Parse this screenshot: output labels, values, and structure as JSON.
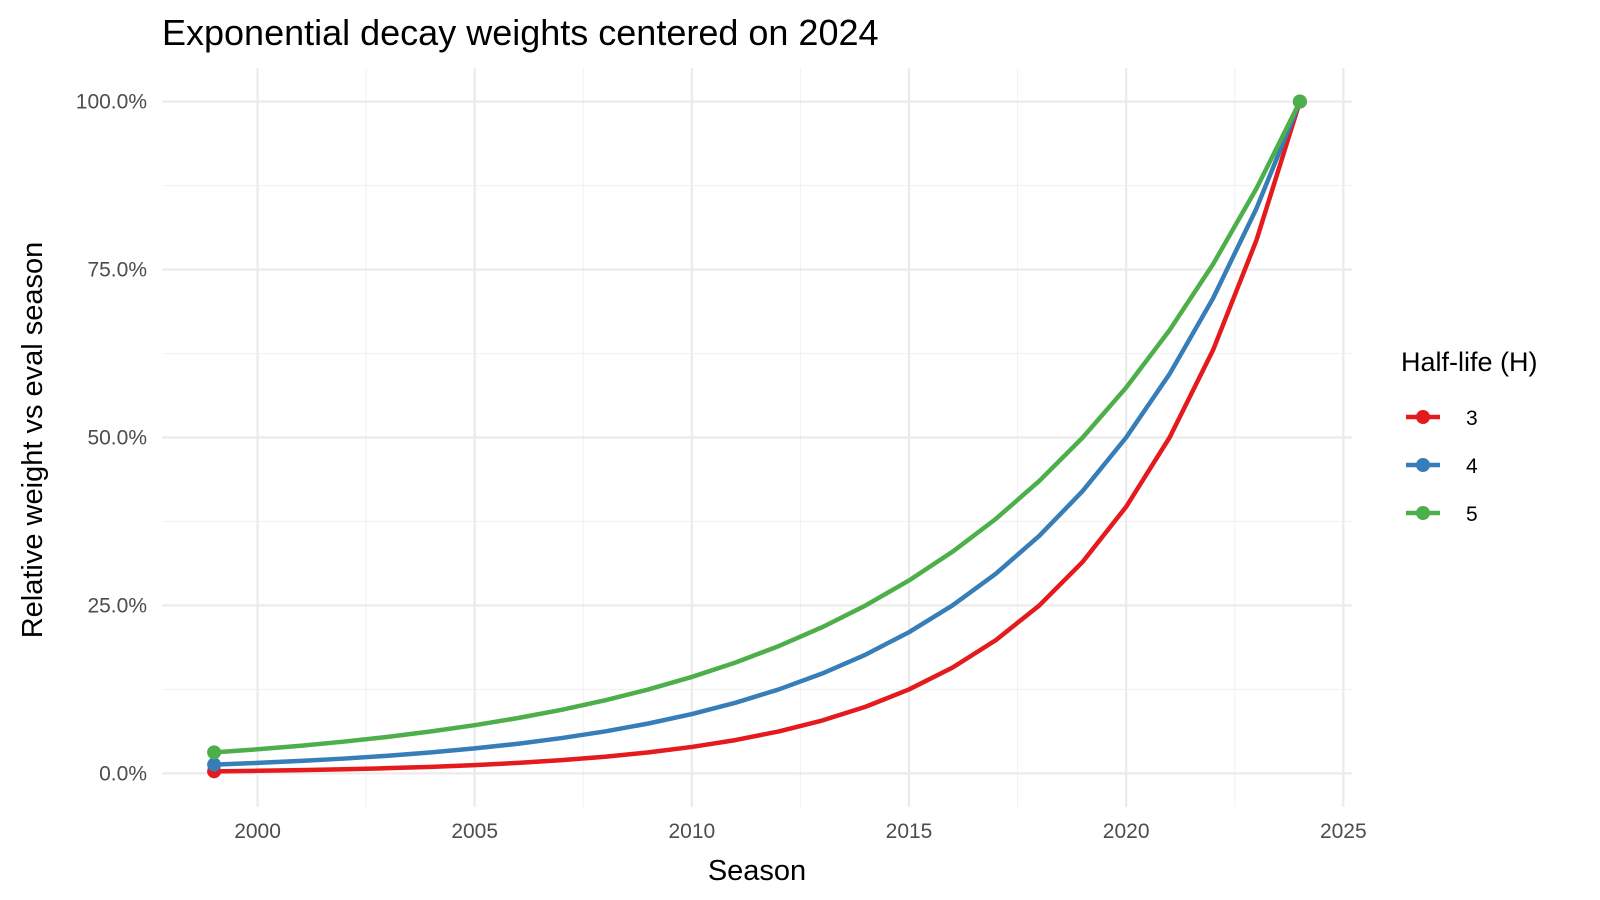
{
  "chart_data": {
    "type": "line",
    "title": "Exponential decay weights centered on 2024",
    "xlabel": "Season",
    "ylabel": "Relative weight vs eval season",
    "xlim": [
      1997.8,
      2025.2
    ],
    "ylim": [
      -0.05,
      1.05
    ],
    "x_ticks": [
      2000,
      2005,
      2010,
      2015,
      2020,
      2025
    ],
    "x_tick_labels": [
      "2000",
      "2005",
      "2010",
      "2015",
      "2020",
      "2025"
    ],
    "y_ticks": [
      0,
      0.25,
      0.5,
      0.75,
      1.0
    ],
    "y_tick_labels": [
      "0.0%",
      "25.0%",
      "50.0%",
      "75.0%",
      "100.0%"
    ],
    "grid": true,
    "legend": {
      "title": "Half-life (H)",
      "position": "right"
    },
    "x": [
      1999,
      2000,
      2001,
      2002,
      2003,
      2004,
      2005,
      2006,
      2007,
      2008,
      2009,
      2010,
      2011,
      2012,
      2013,
      2014,
      2015,
      2016,
      2017,
      2018,
      2019,
      2020,
      2021,
      2022,
      2023,
      2024
    ],
    "endpoints_marked": true,
    "series": [
      {
        "name": "3",
        "color": "#e41a1c",
        "values": [
          0.0031,
          0.0039,
          0.0049,
          0.0062,
          0.0078,
          0.0098,
          0.0124,
          0.0156,
          0.0197,
          0.0248,
          0.0313,
          0.0394,
          0.0496,
          0.0625,
          0.0787,
          0.0992,
          0.125,
          0.1575,
          0.1984,
          0.25,
          0.315,
          0.3969,
          0.5,
          0.63,
          0.7937,
          1.0
        ]
      },
      {
        "name": "4",
        "color": "#377eb8",
        "values": [
          0.0131,
          0.0156,
          0.0186,
          0.0221,
          0.0263,
          0.0313,
          0.0372,
          0.0442,
          0.0526,
          0.0625,
          0.0743,
          0.0884,
          0.1051,
          0.125,
          0.1487,
          0.1768,
          0.2102,
          0.25,
          0.2973,
          0.3536,
          0.4204,
          0.5,
          0.5946,
          0.7071,
          0.8409,
          1.0
        ]
      },
      {
        "name": "5",
        "color": "#4daf4a",
        "values": [
          0.0313,
          0.0359,
          0.0412,
          0.0474,
          0.0544,
          0.0625,
          0.0718,
          0.0825,
          0.0947,
          0.1088,
          0.125,
          0.1436,
          0.1649,
          0.1895,
          0.2176,
          0.25,
          0.2872,
          0.3299,
          0.3789,
          0.4353,
          0.5,
          0.5743,
          0.6598,
          0.7579,
          0.8706,
          1.0
        ]
      }
    ]
  }
}
